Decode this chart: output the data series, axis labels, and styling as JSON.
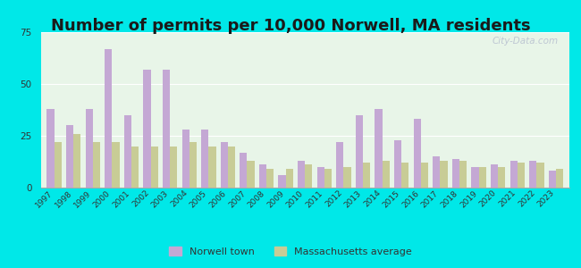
{
  "title": "Number of permits per 10,000 Norwell, MA residents",
  "years": [
    1997,
    1998,
    1999,
    2000,
    2001,
    2002,
    2003,
    2004,
    2005,
    2006,
    2007,
    2008,
    2009,
    2010,
    2011,
    2012,
    2013,
    2014,
    2015,
    2016,
    2017,
    2018,
    2019,
    2020,
    2021,
    2022,
    2023
  ],
  "norwell": [
    38,
    30,
    38,
    67,
    35,
    57,
    57,
    28,
    28,
    22,
    17,
    11,
    6,
    13,
    10,
    22,
    35,
    38,
    23,
    33,
    15,
    14,
    10,
    11,
    13,
    13,
    8
  ],
  "ma_avg": [
    22,
    26,
    22,
    22,
    20,
    20,
    20,
    22,
    20,
    20,
    13,
    9,
    9,
    11,
    9,
    10,
    12,
    13,
    12,
    12,
    13,
    13,
    10,
    10,
    12,
    12,
    9
  ],
  "norwell_color": "#c4a8d4",
  "ma_color": "#c8cc96",
  "outer_background": "#00e8e8",
  "plot_bg": "#e8f5e8",
  "ylim": [
    0,
    75
  ],
  "yticks": [
    0,
    25,
    50,
    75
  ],
  "title_fontsize": 13,
  "watermark": "City-Data.com"
}
